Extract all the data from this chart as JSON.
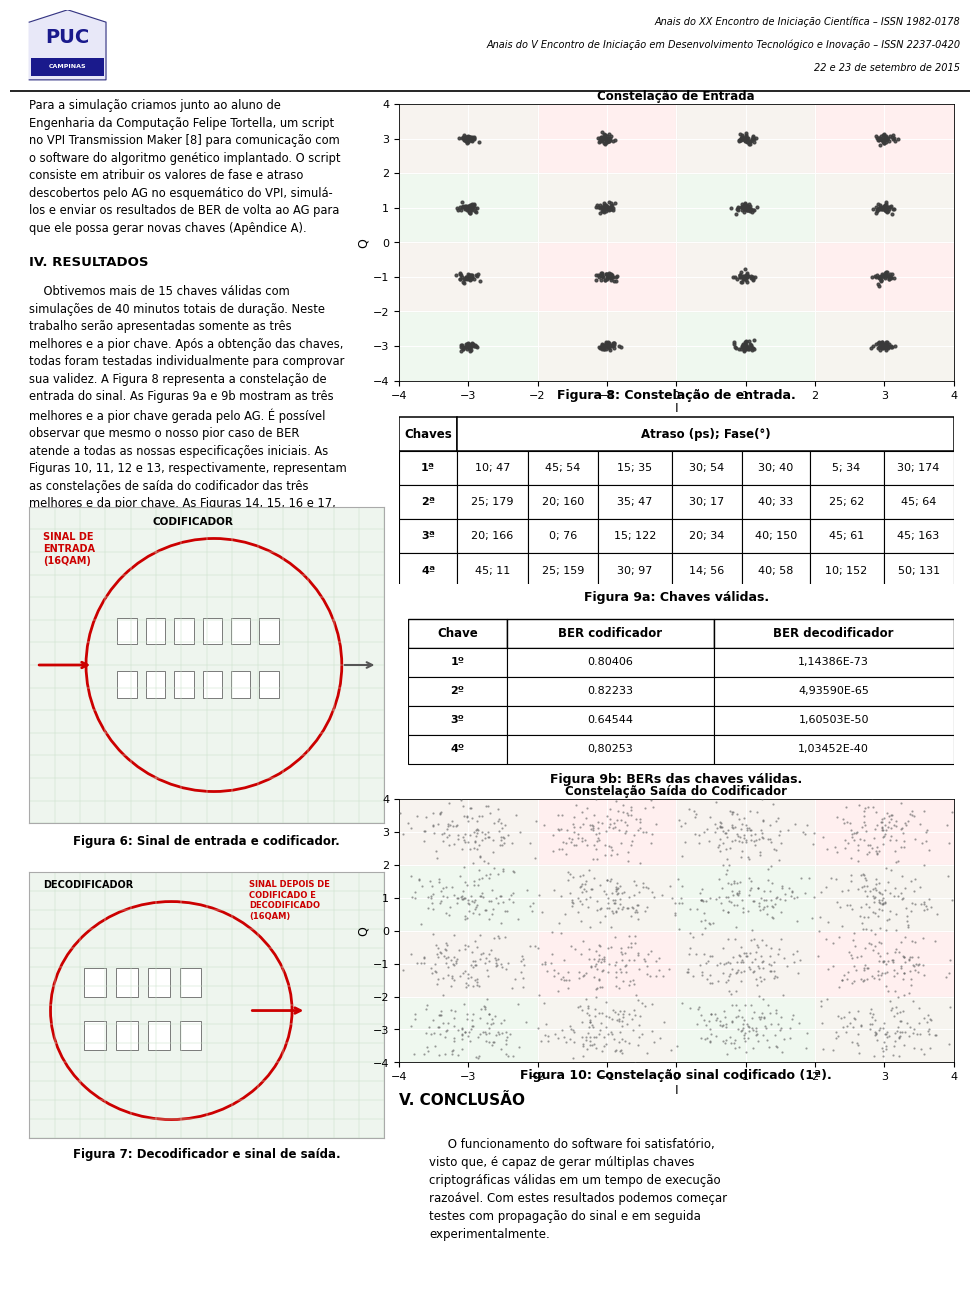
{
  "page_width": 9.6,
  "page_height": 13.29,
  "bg_color": "#ffffff",
  "header_line1": "Anais do XX Encontro de Iniciação Científica – ISSN 1982-0178",
  "header_line2": "Anais do V Encontro de Iniciação em Desenvolvimento Tecnológico e Inovação – ISSN 2237-0420",
  "header_line3": "22 e 23 de setembro de 2015",
  "fig8_title": "Constelação de Entrada",
  "fig8_xlabel": "I",
  "fig8_ylabel": "Q",
  "fig8_xlim": [
    -4,
    4
  ],
  "fig8_ylim": [
    -4,
    4
  ],
  "fig8_xticks": [
    -4,
    -3,
    -2,
    -1,
    0,
    1,
    2,
    3,
    4
  ],
  "fig8_yticks": [
    -4,
    -3,
    -2,
    -1,
    0,
    1,
    2,
    3,
    4
  ],
  "fig8_caption": "Figura 8: Constelação de entrada.",
  "fig8_points_x": [
    -3,
    -1,
    1,
    3,
    -3,
    -1,
    1,
    3,
    -3,
    -1,
    1,
    3,
    -3,
    -1,
    1,
    3
  ],
  "fig8_points_y": [
    3,
    3,
    3,
    3,
    1,
    1,
    1,
    1,
    -1,
    -1,
    -1,
    -1,
    -3,
    -3,
    -3,
    -3
  ],
  "table9a_title": "Figura 9a: Chaves válidas.",
  "table9a_rows": [
    [
      "1ª",
      "10; 47",
      "45; 54",
      "15; 35",
      "30; 54",
      "30; 40",
      "5; 34",
      "30; 174"
    ],
    [
      "2ª",
      "25; 179",
      "20; 160",
      "35; 47",
      "30; 17",
      "40; 33",
      "25; 62",
      "45; 64"
    ],
    [
      "3ª",
      "20; 166",
      "0; 76",
      "15; 122",
      "20; 34",
      "40; 150",
      "45; 61",
      "45; 163"
    ],
    [
      "4ª",
      "45; 11",
      "25; 159",
      "30; 97",
      "14; 56",
      "40; 58",
      "10; 152",
      "50; 131"
    ]
  ],
  "table9b_title": "Figura 9b: BERs das chaves válidas.",
  "table9b_headers": [
    "Chave",
    "BER codificador",
    "BER decodificador"
  ],
  "table9b_rows": [
    [
      "1º",
      "0.80406",
      "1,14386E-73"
    ],
    [
      "2º",
      "0.82233",
      "4,93590E-65"
    ],
    [
      "3º",
      "0.64544",
      "1,60503E-50"
    ],
    [
      "4º",
      "0,80253",
      "1,03452E-40"
    ]
  ],
  "fig10_title": "Constelação Saída do Codificador",
  "fig10_xlabel": "I",
  "fig10_ylabel": "Q",
  "fig10_xlim": [
    -4,
    4
  ],
  "fig10_ylim": [
    -4,
    4
  ],
  "fig10_caption": "Figura 10: Constelação sinal codificado (1ª).",
  "conclusion_title": "V. CONCLUSÃO",
  "left_para1": "Para a simulação criamos junto ao aluno de\nEngenharia da Computação Felipe Tortella, um script\nno VPI Transmission Maker [8] para comunicação com\no software do algoritmo genético implantado. O script\nconsiste em atribuir os valores de fase e atraso\ndescobertos pelo AG no esquemático do VPI, simulá-\nlos e enviar os resultados de BER de volta ao AG para\nque ele possa gerar novas chaves (Apêndice A).",
  "section_iv": "IV. RESULTADOS",
  "left_para2": "    Obtivemos mais de 15 chaves válidas com\nsimulações de 40 minutos totais de duração. Neste\ntrabalho serão apresentadas somente as três\nmelhores e a pior chave. Após a obtenção das chaves,\ntodas foram testadas individualmente para comprovar\nsua validez. A Figura 8 representa a constelação de\nentrada do sinal. As Figuras 9a e 9b mostram as três\nmelhores e a pior chave gerada pelo AG. É possível\nobservar que mesmo o nosso pior caso de BER\natende a todas as nossas especificações iniciais. As\nFiguras 10, 11, 12 e 13, respectivamente, representam\nas constelações de saída do codificador das três\nmelhores e da pior chave. As Figuras 14, 15, 16 e 17,\nrespectivamente, apresentam a constelação de saída\ndo decodificador das três melhores e da pior chave.",
  "fig6_caption": "Figura 6: Sinal de entrada e codificador.",
  "fig7_caption": "Figura 7: Decodificador e sinal de saída.",
  "conclusion_body": "     O funcionamento do software foi satisfatório,\nvisto que, é capaz de gerar múltiplas chaves\ncriptográficas válidas em um tempo de execução\nrazoável. Com estes resultados podemos começar\ntestes com propagação do sinal e em seguida\nexperimentalmente."
}
